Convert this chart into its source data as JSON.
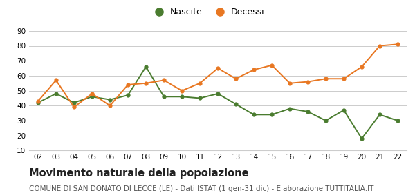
{
  "years": [
    2,
    3,
    4,
    5,
    6,
    7,
    8,
    9,
    10,
    11,
    12,
    13,
    14,
    15,
    16,
    17,
    18,
    19,
    20,
    21,
    22
  ],
  "nascite": [
    42,
    48,
    42,
    46,
    44,
    47,
    66,
    46,
    46,
    45,
    48,
    41,
    34,
    34,
    38,
    36,
    30,
    37,
    18,
    34,
    30
  ],
  "decessi": [
    43,
    57,
    39,
    48,
    40,
    54,
    55,
    57,
    50,
    55,
    65,
    58,
    64,
    67,
    55,
    56,
    58,
    58,
    66,
    80,
    81
  ],
  "nascite_color": "#4a7c2f",
  "decessi_color": "#e87722",
  "ylim": [
    10,
    90
  ],
  "yticks": [
    10,
    20,
    30,
    40,
    50,
    60,
    70,
    80,
    90
  ],
  "title": "Movimento naturale della popolazione",
  "subtitle": "COMUNE DI SAN DONATO DI LECCE (LE) - Dati ISTAT (1 gen-31 dic) - Elaborazione TUTTITALIA.IT",
  "legend_nascite": "Nascite",
  "legend_decessi": "Decessi",
  "background_color": "#ffffff",
  "grid_color": "#cccccc",
  "title_fontsize": 10.5,
  "subtitle_fontsize": 7.5,
  "legend_fontsize": 9,
  "tick_fontsize": 7.5
}
